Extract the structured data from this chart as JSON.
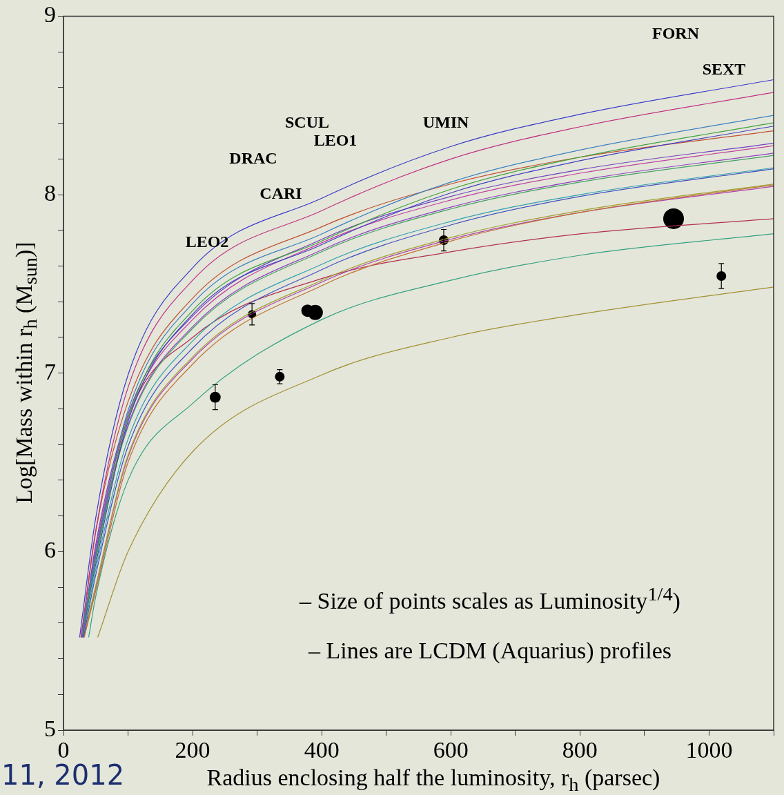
{
  "chart_data": {
    "type": "line",
    "xlabel": "Radius enclosing half the luminosity, r$_{h}$ (parsec)",
    "ylabel": "Log[Mass within r$_{h}$ (M$_{sun}$)]",
    "xlim": [
      0,
      1100
    ],
    "ylim": [
      5,
      9
    ],
    "xticks": [
      0,
      {
        "value": 100,
        "label": null
      },
      200,
      {
        "value": 300,
        "label": null
      },
      400,
      {
        "value": 500,
        "label": null
      },
      600,
      {
        "value": 700,
        "label": null
      },
      800,
      {
        "value": 900,
        "label": null
      },
      1000,
      {
        "value": 1100,
        "label": null
      }
    ],
    "yticks": [
      5,
      {
        "value": 5.2,
        "label": null
      },
      {
        "value": 5.4,
        "label": null
      },
      {
        "value": 5.6,
        "label": null
      },
      {
        "value": 5.8,
        "label": null
      },
      6,
      {
        "value": 6.2,
        "label": null
      },
      {
        "value": 6.4,
        "label": null
      },
      {
        "value": 6.6,
        "label": null
      },
      {
        "value": 6.8,
        "label": null
      },
      7,
      {
        "value": 7.2,
        "label": null
      },
      {
        "value": 7.4,
        "label": null
      },
      {
        "value": 7.6,
        "label": null
      },
      {
        "value": 7.8,
        "label": null
      },
      8,
      {
        "value": 8.2,
        "label": null
      },
      {
        "value": 8.4,
        "label": null
      },
      {
        "value": 8.6,
        "label": null
      },
      {
        "value": 8.8,
        "label": null
      },
      9
    ],
    "legend": false,
    "series": [
      {
        "type": "line",
        "color": "#3a3ac8",
        "x": [
          25,
          50,
          100,
          200,
          400,
          600,
          800,
          1100
        ],
        "values": [
          5.52,
          6.19,
          6.99,
          7.59,
          7.98,
          8.27,
          8.45,
          8.644
        ]
      },
      {
        "type": "line",
        "color": "#c03080",
        "x": [
          27,
          50,
          100,
          200,
          400,
          600,
          800,
          1100
        ],
        "values": [
          5.52,
          6.12,
          6.92,
          7.52,
          7.91,
          8.2,
          8.38,
          8.573
        ]
      },
      {
        "type": "line",
        "color": "#3a80c0",
        "x": [
          27,
          50,
          100,
          200,
          400,
          600,
          800,
          1100
        ],
        "values": [
          5.52,
          5.99,
          6.79,
          7.39,
          7.78,
          8.07,
          8.25,
          8.444
        ]
      },
      {
        "type": "line",
        "color": "#40a040",
        "x": [
          28,
          50,
          100,
          200,
          400,
          600,
          800,
          1100
        ],
        "values": [
          5.52,
          5.95,
          6.75,
          7.35,
          7.74,
          8.03,
          8.21,
          8.403
        ]
      },
      {
        "type": "line",
        "color": "#4040c0",
        "x": [
          28,
          50,
          100,
          200,
          400,
          600,
          800,
          1100
        ],
        "values": [
          5.52,
          5.93,
          6.73,
          7.33,
          7.72,
          8.01,
          8.19,
          8.384
        ]
      },
      {
        "type": "line",
        "color": "#c05030",
        "x": [
          28,
          50,
          100,
          200,
          400,
          600,
          800,
          1100
        ],
        "values": [
          5.52,
          6.11,
          6.84,
          7.42,
          7.82,
          8.06,
          8.21,
          8.357
        ]
      },
      {
        "type": "line",
        "color": "#7040c0",
        "x": [
          29,
          50,
          100,
          200,
          400,
          600,
          800,
          1100
        ],
        "values": [
          5.52,
          6.04,
          6.77,
          7.32,
          7.75,
          7.99,
          8.14,
          8.288
        ]
      },
      {
        "type": "line",
        "color": "#c040a0",
        "x": [
          29,
          50,
          100,
          200,
          400,
          600,
          800,
          1100
        ],
        "values": [
          5.52,
          6.02,
          6.75,
          7.3,
          7.73,
          7.97,
          8.12,
          8.274
        ]
      },
      {
        "type": "line",
        "color": "#9040c0",
        "x": [
          30,
          50,
          100,
          200,
          400,
          600,
          800,
          1100
        ],
        "values": [
          5.52,
          5.98,
          6.71,
          7.26,
          7.69,
          7.93,
          8.08,
          8.233
        ]
      },
      {
        "type": "line",
        "color": "#40a060",
        "x": [
          30,
          50,
          100,
          200,
          400,
          600,
          800,
          1100
        ],
        "values": [
          5.52,
          5.97,
          6.7,
          7.25,
          7.68,
          7.92,
          8.07,
          8.22
        ]
      },
      {
        "type": "line",
        "color": "#30a0b0",
        "x": [
          30,
          50,
          100,
          200,
          400,
          600,
          800,
          1100
        ],
        "values": [
          5.52,
          5.9,
          6.63,
          7.18,
          7.61,
          7.85,
          8.0,
          8.151
        ]
      },
      {
        "type": "line",
        "color": "#4050c0",
        "x": [
          31,
          50,
          100,
          200,
          400,
          600,
          800,
          1100
        ],
        "values": [
          5.52,
          5.87,
          6.59,
          7.14,
          7.58,
          7.83,
          7.99,
          8.145
        ]
      },
      {
        "type": "line",
        "color": "#a0a030",
        "x": [
          31,
          50,
          100,
          200,
          400,
          600,
          800,
          1100
        ],
        "values": [
          5.52,
          5.81,
          6.54,
          7.09,
          7.52,
          7.76,
          7.91,
          8.06
        ]
      },
      {
        "type": "line",
        "color": "#c07030",
        "x": [
          32,
          50,
          100,
          200,
          400,
          600,
          800,
          1100
        ],
        "values": [
          5.52,
          5.78,
          6.5,
          7.05,
          7.49,
          7.74,
          7.9,
          8.055
        ]
      },
      {
        "type": "line",
        "color": "#b040b0",
        "x": [
          32,
          50,
          100,
          200,
          400,
          600,
          800,
          1100
        ],
        "values": [
          5.52,
          5.8,
          6.53,
          7.08,
          7.51,
          7.75,
          7.9,
          8.046
        ]
      },
      {
        "type": "line",
        "color": "#b03050",
        "x": [
          28,
          50,
          100,
          200,
          400,
          600,
          800,
          1100
        ],
        "values": [
          5.52,
          6.0,
          6.75,
          7.2,
          7.53,
          7.68,
          7.78,
          7.865
        ]
      },
      {
        "type": "line",
        "color": "#30a080",
        "x": [
          39,
          50,
          100,
          200,
          400,
          600,
          800,
          1100
        ],
        "values": [
          5.52,
          5.75,
          6.4,
          6.83,
          7.3,
          7.52,
          7.66,
          7.781
        ]
      },
      {
        "type": "line",
        "color": "#a09030",
        "x": [
          53,
          100,
          200,
          400,
          600,
          800,
          1100
        ],
        "values": [
          5.52,
          6.0,
          6.56,
          6.99,
          7.2,
          7.33,
          7.483
        ]
      },
      {
        "type": "bubble",
        "color": "#000000",
        "x": [
          235,
          292,
          335,
          378,
          390,
          589,
          945,
          1019
        ],
        "values": [
          6.865,
          7.33,
          6.98,
          7.35,
          7.34,
          7.745,
          7.865,
          7.544
        ],
        "sizes": [
          0.28,
          0.16,
          0.22,
          0.36,
          0.54,
          0.22,
          1,
          0.22
        ],
        "errors": [
          0.07,
          0.06,
          0.04,
          null,
          null,
          0.06,
          null,
          0.07
        ]
      }
    ],
    "annotations": [
      "LEO2",
      "CARI",
      "DRAC",
      "SCUL",
      "LEO1",
      "UMIN",
      "FORN",
      "SEXT",
      "– Size of points scales as Luminosity$^{1/4}$)",
      "– Lines are LCDM (Aquarius) profiles",
      "11, 2012"
    ]
  }
}
